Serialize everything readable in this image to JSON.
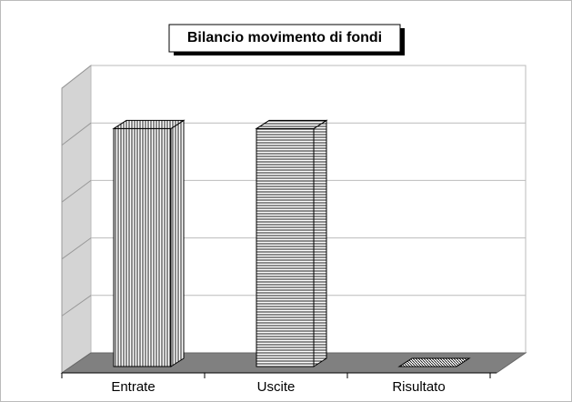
{
  "chart_data": {
    "type": "bar3d",
    "title": "Bilancio movimento di fondi",
    "categories": [
      "Entrate",
      "Uscite",
      "Risultato"
    ],
    "values": [
      4,
      4,
      0
    ],
    "color": "#ffffff",
    "ylim": [
      0,
      5
    ],
    "yticks": [
      0,
      1,
      2,
      3,
      4,
      5
    ],
    "grid": true
  }
}
